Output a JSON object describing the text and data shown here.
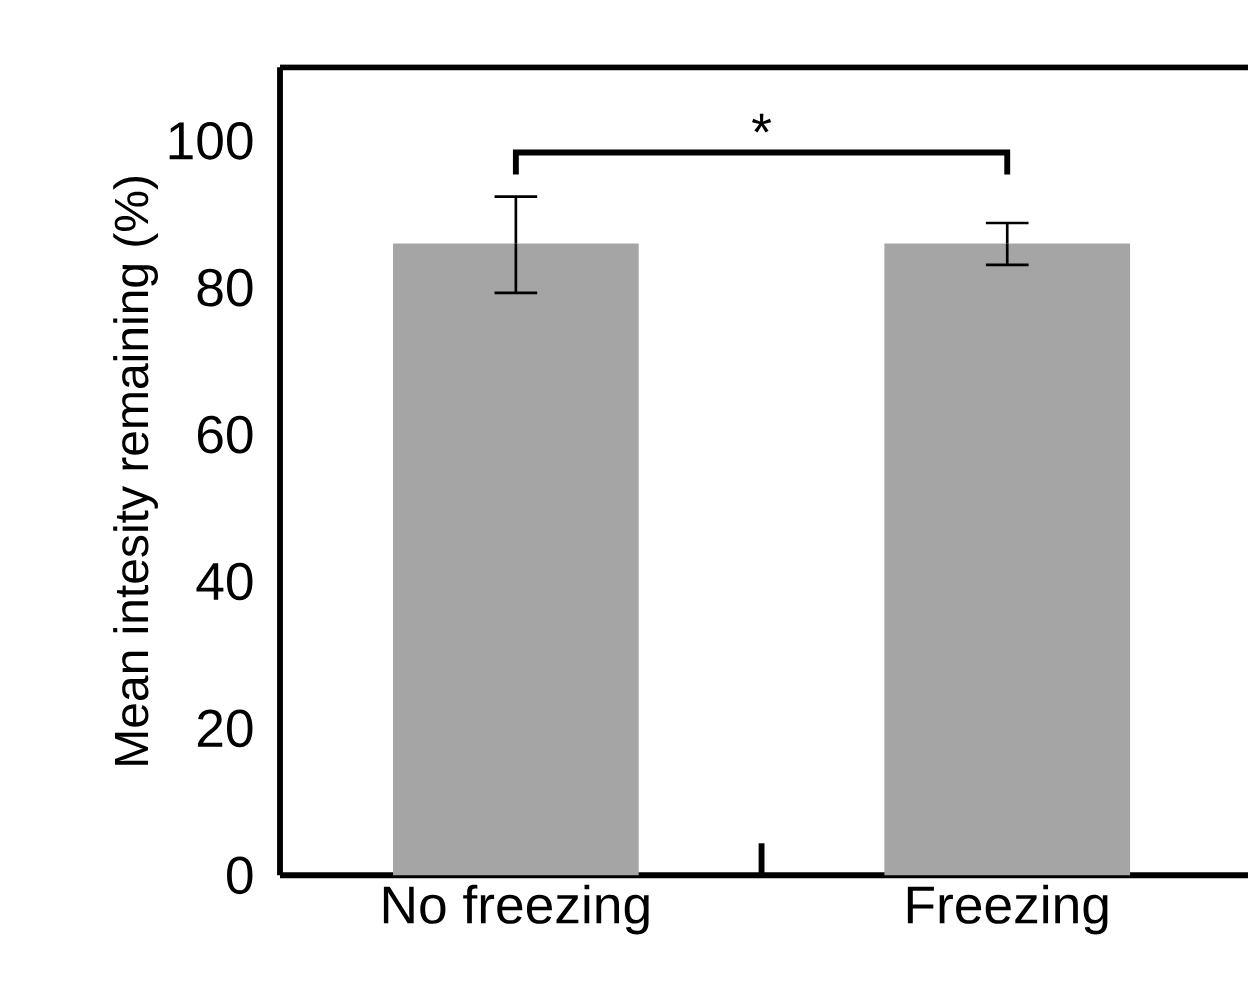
{
  "chart_data": {
    "type": "bar",
    "ylabel": "Mean intesity remaining (%)",
    "categories": [
      "No freezing",
      "Freezing"
    ],
    "values": [
      86,
      86
    ],
    "color": "#a5a5a5",
    "errors": [
      [
        79.3,
        92.4
      ],
      [
        83.1,
        88.8
      ]
    ],
    "ylim": [
      0,
      110
    ],
    "yticks": [
      0,
      20,
      40,
      60,
      80,
      100
    ],
    "annotations": [
      "*"
    ],
    "grid": false
  }
}
